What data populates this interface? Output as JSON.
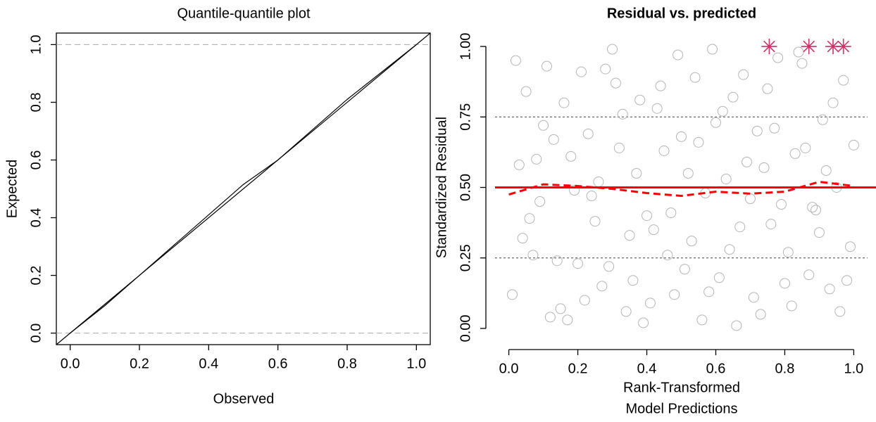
{
  "chart_data": [
    {
      "type": "line",
      "title": "Quantile-quantile plot",
      "x_label": "Observed",
      "y_label": "Expected",
      "xlim": [
        -0.04,
        1.04
      ],
      "ylim": [
        -0.04,
        1.04
      ],
      "xticks": [
        {
          "value": 0,
          "label": "0.0"
        },
        0.2,
        0.4,
        0.6,
        0.8,
        {
          "value": 1,
          "label": "1.0"
        }
      ],
      "yticks": [
        {
          "value": 0,
          "label": "0.0"
        },
        0.2,
        0.4,
        0.6,
        0.8,
        {
          "value": 1,
          "label": "1.0"
        }
      ],
      "box": true,
      "hlines": [
        0,
        1
      ],
      "hline_color": "#aaaaaa",
      "reference_line": {
        "slope": 1,
        "intercept": 0,
        "color": "#000000"
      },
      "x": [
        0,
        0.1,
        0.2,
        0.3,
        0.4,
        0.5,
        0.6,
        0.7,
        0.8,
        0.9,
        1.0
      ],
      "series": [
        {
          "color": "#000000",
          "values": [
            0,
            0.095,
            0.2,
            0.305,
            0.41,
            0.515,
            0.6,
            0.705,
            0.81,
            0.905,
            1.0
          ]
        }
      ]
    },
    {
      "type": "scatter",
      "title": "Residual vs. predicted",
      "x_label": [
        "Rank-Transformed",
        "Model Predictions"
      ],
      "y_label": "Standardized Residual",
      "xlim": [
        -0.04,
        1.04
      ],
      "ylim": [
        -0.04,
        1.04
      ],
      "xticks": [
        {
          "value": 0,
          "label": "0.0"
        },
        0.2,
        0.4,
        0.6,
        0.8,
        {
          "value": 1,
          "label": "1.0"
        }
      ],
      "yticks": [
        {
          "value": 0,
          "label": "0.00"
        },
        0.25,
        {
          "value": 0.5,
          "label": "0.50"
        },
        0.75,
        {
          "value": 1,
          "label": "1.00"
        }
      ],
      "box": false,
      "color": "#b5b5b5",
      "hlines": [
        0.25,
        0.75
      ],
      "hline_color": "#444444",
      "reference_line": {
        "value": 0.5,
        "color": "#ff0000"
      },
      "quantile_curve": {
        "color": "#ff0000",
        "x": [
          0,
          0.1,
          0.2,
          0.3,
          0.4,
          0.5,
          0.6,
          0.7,
          0.8,
          0.9,
          1.0
        ],
        "values": [
          0.475,
          0.511,
          0.505,
          0.495,
          0.48,
          0.47,
          0.485,
          0.478,
          0.485,
          0.52,
          0.505
        ]
      },
      "outliers": {
        "color": "#cc3366",
        "x": [
          0.755,
          0.87,
          0.94,
          0.97
        ],
        "values": [
          1,
          1,
          1,
          1
        ]
      },
      "x": [
        0.01,
        0.05,
        0.09,
        0.13,
        0.17,
        0.21,
        0.25,
        0.29,
        0.33,
        0.37,
        0.41,
        0.45,
        0.49,
        0.53,
        0.57,
        0.61,
        0.65,
        0.69,
        0.73,
        0.77,
        0.81,
        0.85,
        0.89,
        0.93,
        0.97,
        0.03,
        0.07,
        0.11,
        0.15,
        0.19,
        0.23,
        0.27,
        0.31,
        0.35,
        0.39,
        0.43,
        0.47,
        0.51,
        0.55,
        0.59,
        0.63,
        0.67,
        0.71,
        0.75,
        0.79,
        0.83,
        0.87,
        0.91,
        0.95,
        0.99,
        0.02,
        0.06,
        0.1,
        0.14,
        0.18,
        0.22,
        0.26,
        0.3,
        0.34,
        0.38,
        0.42,
        0.46,
        0.5,
        0.54,
        0.58,
        0.62,
        0.66,
        0.7,
        0.74,
        0.78,
        0.82,
        0.86,
        0.9,
        0.94,
        0.98,
        0.04,
        0.08,
        0.12,
        0.16,
        0.2,
        0.24,
        0.28,
        0.32,
        0.36,
        0.4,
        0.44,
        0.48,
        0.52,
        0.56,
        0.6,
        0.64,
        0.68,
        0.72,
        0.76,
        0.8,
        0.84,
        0.88,
        0.92,
        0.96,
        1.0
      ],
      "values": [
        0.12,
        0.84,
        0.45,
        0.67,
        0.03,
        0.91,
        0.38,
        0.22,
        0.76,
        0.55,
        0.09,
        0.63,
        0.97,
        0.31,
        0.48,
        0.18,
        0.82,
        0.59,
        0.05,
        0.71,
        0.27,
        0.94,
        0.42,
        0.14,
        0.88,
        0.58,
        0.26,
        0.93,
        0.07,
        0.49,
        0.69,
        0.15,
        0.87,
        0.33,
        0.02,
        0.78,
        0.41,
        0.21,
        0.66,
        0.99,
        0.53,
        0.36,
        0.11,
        0.85,
        0.44,
        0.62,
        0.19,
        0.74,
        0.5,
        0.29,
        0.95,
        0.39,
        0.72,
        0.24,
        0.61,
        0.1,
        0.52,
        0.99,
        0.06,
        0.81,
        0.35,
        0.26,
        0.68,
        0.89,
        0.13,
        0.77,
        0.01,
        0.46,
        0.57,
        0.96,
        0.08,
        0.64,
        0.34,
        0.8,
        0.17,
        0.32,
        0.6,
        0.04,
        0.8,
        0.23,
        0.47,
        0.92,
        0.64,
        0.17,
        0.4,
        0.86,
        0.12,
        0.55,
        0.03,
        0.73,
        0.28,
        0.9,
        0.7,
        0.37,
        0.16,
        0.98,
        0.43,
        0.56,
        0.06,
        0.65
      ]
    }
  ]
}
